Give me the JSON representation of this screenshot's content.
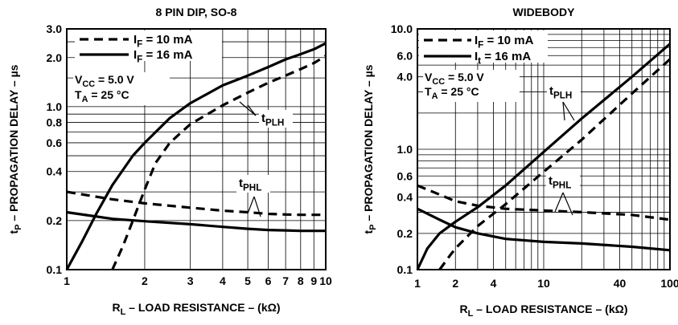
{
  "chart_data": [
    {
      "type": "line",
      "title": "8 PIN DIP, SO-8",
      "xlabel": "R",
      "xlabel_sub": "L",
      "xlabel_rest": " – LOAD RESISTANCE – (kΩ)",
      "ylabel": "t",
      "ylabel_sub": "P",
      "ylabel_rest": " – PROPAGATION DELAY – µs",
      "xscale": "log",
      "yscale": "log",
      "xlim": [
        1,
        10
      ],
      "ylim": [
        0.1,
        3.0
      ],
      "xticks": [
        1,
        2,
        3,
        4,
        5,
        6,
        7,
        8,
        9,
        10
      ],
      "xtick_labels": [
        "1",
        "2",
        "3",
        "4",
        "5",
        "6",
        "7",
        "8",
        "9",
        "10"
      ],
      "yticks": [
        0.1,
        0.2,
        0.4,
        0.6,
        0.8,
        1.0,
        2.0,
        3.0
      ],
      "ytick_labels": [
        "0.1",
        "0.2",
        "0.4",
        "0.6",
        "0.8",
        "1.0",
        "2.0",
        "3.0"
      ],
      "grid": true,
      "legend_position": "top-left",
      "legend": [
        {
          "style": "dashed",
          "main": "I",
          "sub": "F",
          "rest": " = 10 mA"
        },
        {
          "style": "solid",
          "main": "I",
          "sub": "F",
          "rest": " = 16 mA"
        }
      ],
      "conditions": [
        {
          "main": "V",
          "sub": "CC",
          "rest": " = 5.0 V"
        },
        {
          "main": "T",
          "sub": "A",
          "rest": " = 25 °C"
        }
      ],
      "annotations": [
        {
          "main": "t",
          "sub": "PLH"
        },
        {
          "main": "t",
          "sub": "PHL"
        }
      ],
      "series": [
        {
          "style": "solid",
          "group": "tPLH",
          "x": [
            1,
            1.15,
            1.3,
            1.5,
            1.8,
            2,
            2.5,
            3,
            4,
            5,
            6,
            7,
            8,
            9,
            10
          ],
          "y": [
            0.1,
            0.15,
            0.22,
            0.33,
            0.5,
            0.6,
            0.85,
            1.05,
            1.35,
            1.55,
            1.75,
            1.95,
            2.1,
            2.25,
            2.45
          ]
        },
        {
          "style": "dashed",
          "group": "tPLH",
          "x": [
            1.5,
            1.65,
            1.8,
            2,
            2.2,
            2.5,
            3,
            4,
            5,
            6,
            7,
            8,
            9,
            10
          ],
          "y": [
            0.1,
            0.14,
            0.2,
            0.31,
            0.45,
            0.6,
            0.78,
            1.02,
            1.22,
            1.4,
            1.55,
            1.7,
            1.85,
            2.05
          ]
        },
        {
          "style": "dashed",
          "group": "tPHL",
          "x": [
            1,
            1.5,
            2,
            3,
            4,
            5,
            6,
            7,
            8,
            10
          ],
          "y": [
            0.3,
            0.27,
            0.255,
            0.24,
            0.23,
            0.225,
            0.22,
            0.218,
            0.217,
            0.217
          ]
        },
        {
          "style": "solid",
          "group": "tPHL",
          "x": [
            1,
            1.5,
            2,
            3,
            4,
            5,
            6,
            7,
            8,
            10
          ],
          "y": [
            0.225,
            0.205,
            0.198,
            0.19,
            0.183,
            0.178,
            0.175,
            0.174,
            0.173,
            0.173
          ]
        }
      ]
    },
    {
      "type": "line",
      "title": "WIDEBODY",
      "xlabel": "R",
      "xlabel_sub": "L",
      "xlabel_rest": " – LOAD RESISTANCE – (kΩ)",
      "ylabel": "t",
      "ylabel_sub": "P",
      "ylabel_rest": " – PROPAGATION DELAY – µs",
      "xscale": "log",
      "yscale": "log",
      "xlim": [
        1,
        100
      ],
      "ylim": [
        0.1,
        10.0
      ],
      "xticks": [
        1,
        2,
        4,
        10,
        40,
        100
      ],
      "xtick_labels": [
        "1",
        "2",
        "4",
        "10",
        "40",
        "100"
      ],
      "yticks": [
        0.1,
        0.2,
        0.4,
        0.6,
        1.0,
        4.0,
        6.0,
        10.0
      ],
      "ytick_labels": [
        "0.1",
        "0.2",
        "0.4",
        "0.6",
        "1.0",
        "4.0",
        "6.0",
        "10.0"
      ],
      "grid": true,
      "legend_position": "top-left",
      "legend": [
        {
          "style": "dashed",
          "main": "I",
          "sub": "F",
          "rest": " = 10 mA"
        },
        {
          "style": "solid",
          "main": "I",
          "sub": "t",
          "rest": " = 16 mA"
        }
      ],
      "conditions": [
        {
          "main": "V",
          "sub": "CC",
          "rest": " = 5.0 V"
        },
        {
          "main": "T",
          "sub": "A",
          "rest": " = 25 °C"
        }
      ],
      "annotations": [
        {
          "main": "t",
          "sub": "PLH"
        },
        {
          "main": "t",
          "sub": "PHL"
        }
      ],
      "series": [
        {
          "style": "solid",
          "group": "tPLH",
          "x": [
            1,
            1.2,
            1.5,
            2,
            3,
            5,
            10,
            20,
            50,
            100
          ],
          "y": [
            0.1,
            0.15,
            0.2,
            0.25,
            0.33,
            0.5,
            0.95,
            1.8,
            4.0,
            7.5
          ]
        },
        {
          "style": "dashed",
          "group": "tPLH",
          "x": [
            1.5,
            1.8,
            2,
            2.5,
            3,
            5,
            10,
            20,
            50,
            100
          ],
          "y": [
            0.1,
            0.13,
            0.15,
            0.19,
            0.23,
            0.35,
            0.65,
            1.2,
            2.9,
            5.6
          ]
        },
        {
          "style": "dashed",
          "group": "tPHL",
          "x": [
            1,
            1.5,
            2,
            3,
            5,
            10,
            20,
            50,
            100
          ],
          "y": [
            0.5,
            0.42,
            0.37,
            0.34,
            0.32,
            0.31,
            0.3,
            0.285,
            0.26
          ]
        },
        {
          "style": "solid",
          "group": "tPHL",
          "x": [
            1,
            1.5,
            2,
            3,
            5,
            10,
            20,
            50,
            100
          ],
          "y": [
            0.32,
            0.26,
            0.225,
            0.2,
            0.18,
            0.17,
            0.165,
            0.155,
            0.145
          ]
        }
      ]
    }
  ]
}
